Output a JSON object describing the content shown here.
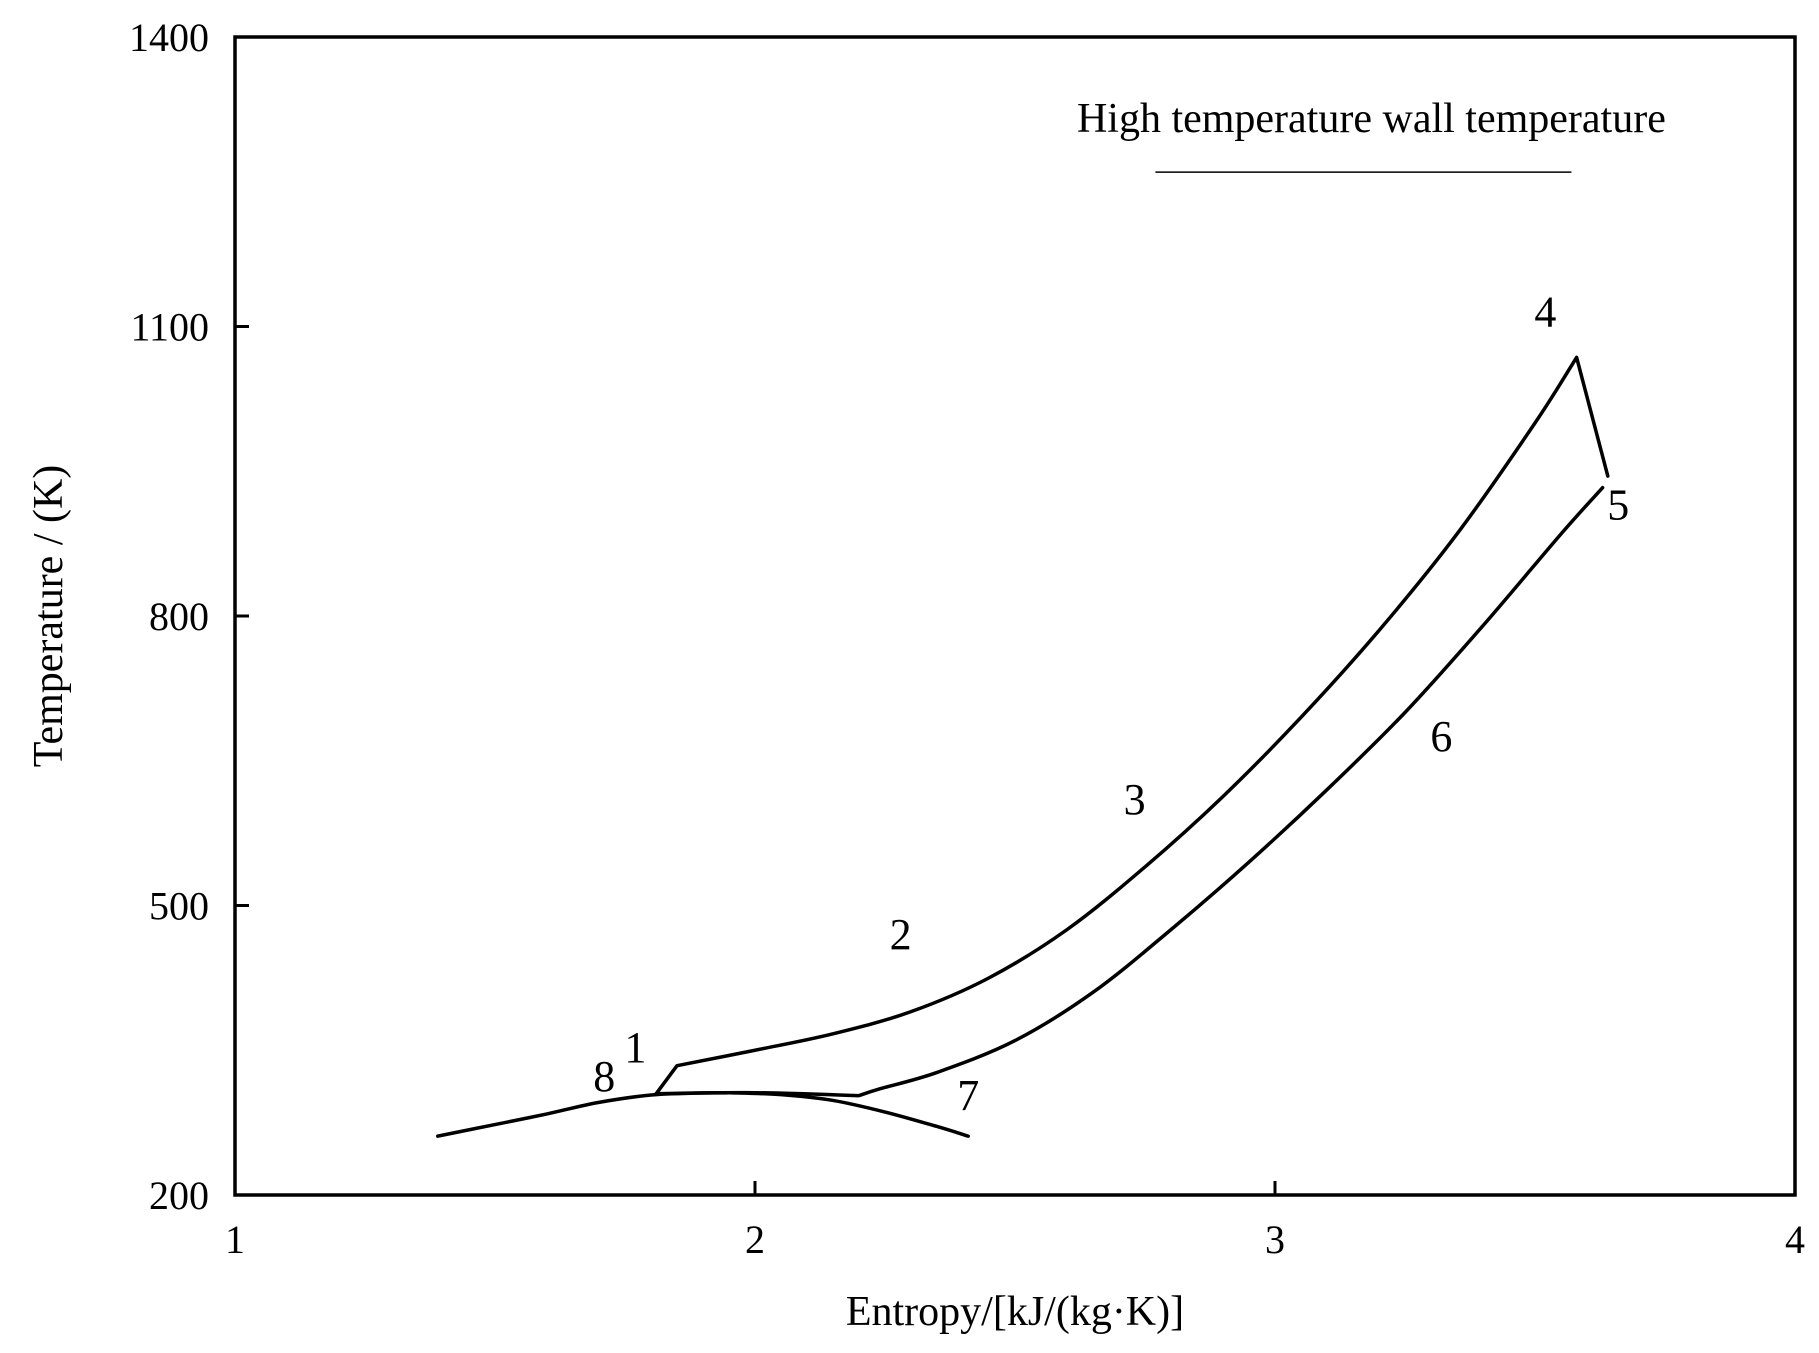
{
  "chart_data": {
    "type": "line",
    "title": "",
    "xlabel": "Entropy/[kJ/(kg·K)]",
    "ylabel": "Temperature / (K)",
    "xlim": [
      1,
      4
    ],
    "ylim": [
      200,
      1400
    ],
    "xticks": [
      1,
      2,
      3,
      4
    ],
    "yticks": [
      200,
      500,
      800,
      1100,
      1400
    ],
    "xtick_labels": [
      "1",
      "2",
      "3",
      "4"
    ],
    "ytick_labels": [
      "200",
      "500",
      "800",
      "1100",
      "1400"
    ],
    "grid": false,
    "annotation": {
      "text": "High temperature wall temperature",
      "underline_x": [
        2.77,
        3.57
      ],
      "underline_y": 1260
    },
    "series": [
      {
        "name": "cycle-upper",
        "x": [
          1.81,
          1.85,
          2.0,
          2.15,
          2.3,
          2.45,
          2.6,
          2.75,
          2.9,
          3.05,
          3.2,
          3.35,
          3.5,
          3.58,
          3.64
        ],
        "y": [
          305,
          334,
          350,
          367,
          390,
          425,
          475,
          540,
          613,
          695,
          785,
          885,
          1000,
          1068,
          945
        ]
      },
      {
        "name": "cycle-lower",
        "x": [
          1.81,
          2.0,
          2.2,
          2.24,
          2.35,
          2.5,
          2.65,
          2.8,
          2.95,
          3.1,
          3.25,
          3.4,
          3.55,
          3.63
        ],
        "y": [
          305,
          306,
          303,
          310,
          327,
          360,
          410,
          475,
          545,
          620,
          700,
          790,
          885,
          933
        ]
      },
      {
        "name": "dome-left",
        "x": [
          1.39,
          1.5,
          1.6,
          1.7,
          1.81,
          1.95
        ],
        "y": [
          261,
          273,
          284,
          296,
          304,
          306
        ]
      },
      {
        "name": "dome-right",
        "x": [
          1.95,
          2.05,
          2.15,
          2.25,
          2.35,
          2.41
        ],
        "y": [
          306,
          304,
          298,
          286,
          271,
          261
        ]
      }
    ],
    "point_labels": [
      {
        "text": "1",
        "x": 1.77,
        "y": 338
      },
      {
        "text": "2",
        "x": 2.28,
        "y": 455
      },
      {
        "text": "3",
        "x": 2.73,
        "y": 595
      },
      {
        "text": "4",
        "x": 3.52,
        "y": 1100
      },
      {
        "text": "5",
        "x": 3.66,
        "y": 900
      },
      {
        "text": "6",
        "x": 3.32,
        "y": 660
      },
      {
        "text": "7",
        "x": 2.41,
        "y": 288
      },
      {
        "text": "8",
        "x": 1.71,
        "y": 308
      }
    ]
  }
}
